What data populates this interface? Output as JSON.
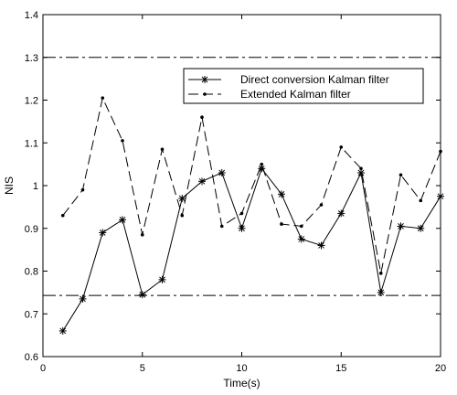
{
  "chart_data": {
    "type": "line",
    "title": "",
    "xlabel": "Time(s)",
    "ylabel": "NIS",
    "xlim": [
      0,
      20
    ],
    "ylim": [
      0.6,
      1.4
    ],
    "xticks": [
      0,
      5,
      10,
      15,
      20
    ],
    "yticks": [
      0.6,
      0.7,
      0.8,
      0.9,
      1.0,
      1.1,
      1.2,
      1.3,
      1.4
    ],
    "ytick_labels": [
      "0.6",
      "0.7",
      "0.8",
      "0.9",
      "1",
      "1.1",
      "1.2",
      "1.3",
      "1.4"
    ],
    "grid": false,
    "legend_position": "top-right",
    "x": [
      1,
      2,
      3,
      4,
      5,
      6,
      7,
      8,
      9,
      10,
      11,
      12,
      13,
      14,
      15,
      16,
      17,
      18,
      19,
      20
    ],
    "series": [
      {
        "name": "Direct conversion Kalman filter",
        "style": "solid",
        "marker": "star",
        "color": "#000000",
        "values": [
          0.66,
          0.735,
          0.89,
          0.92,
          0.745,
          0.78,
          0.97,
          1.01,
          1.03,
          0.9,
          1.04,
          0.98,
          0.875,
          0.86,
          0.935,
          1.03,
          0.75,
          0.905,
          0.9,
          0.975
        ]
      },
      {
        "name": "Extended Kalman filter",
        "style": "dashed",
        "marker": "dot",
        "color": "#000000",
        "values": [
          0.93,
          0.99,
          1.205,
          1.105,
          0.885,
          1.085,
          0.93,
          1.16,
          0.905,
          0.935,
          1.05,
          0.91,
          0.905,
          0.955,
          1.09,
          1.04,
          0.795,
          1.025,
          0.965,
          1.08
        ]
      }
    ],
    "reference_lines": [
      {
        "y": 1.3,
        "style": "dashdot"
      },
      {
        "y": 0.743,
        "style": "dashdot"
      }
    ]
  }
}
